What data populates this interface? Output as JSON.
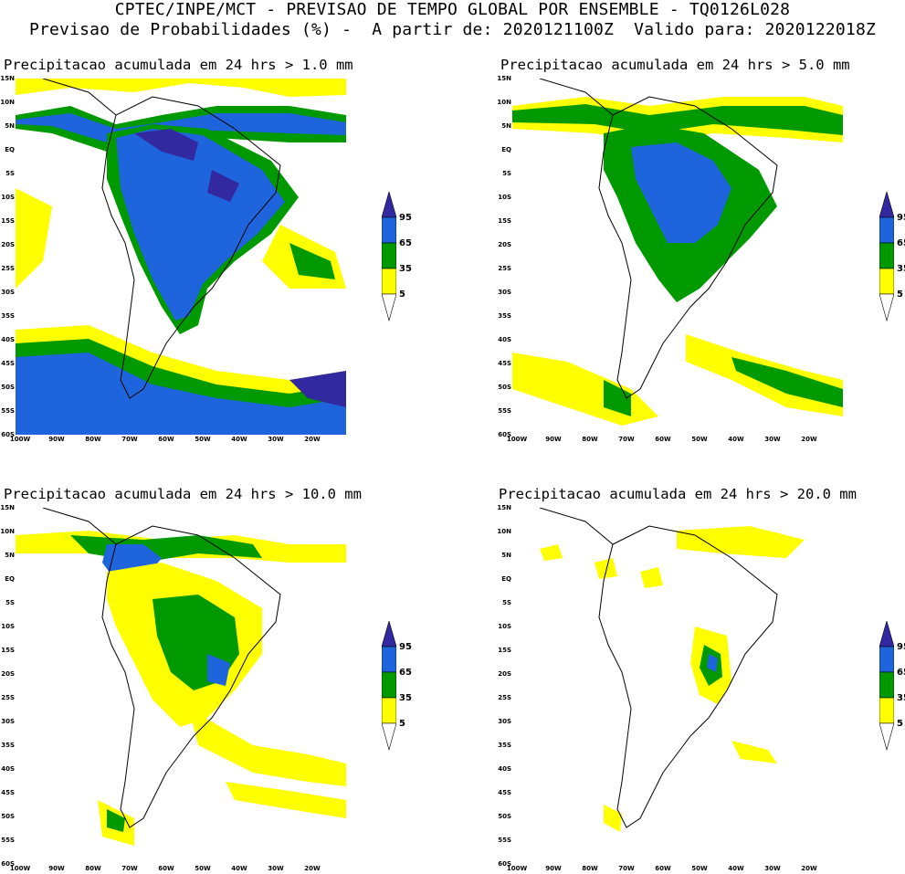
{
  "header": {
    "line1": "CPTEC/INPE/MCT - PREVISAO DE TEMPO GLOBAL POR ENSEMBLE - TQ0126L028",
    "line2": "Previsao de Probabilidades (%) -  A partir de: 2020121100Z  Valido para: 2020122018Z"
  },
  "colors": {
    "yellow": "#ffff00",
    "green": "#009900",
    "blue": "#1e64dc",
    "navy": "#3228a0",
    "land_outline": "#000000"
  },
  "axes": {
    "lat_labels": [
      "15N",
      "10N",
      "5N",
      "EQ",
      "5S",
      "10S",
      "15S",
      "20S",
      "25S",
      "30S",
      "35S",
      "40S",
      "45S",
      "50S",
      "55S",
      "60S"
    ],
    "lon_labels": [
      "100W",
      "90W",
      "80W",
      "70W",
      "60W",
      "50W",
      "40W",
      "30W",
      "20W"
    ]
  },
  "legend": {
    "levels": [
      "95",
      "65",
      "35",
      "5"
    ]
  },
  "panels": [
    {
      "title": "Precipitacao acumulada em 24 hrs > 1.0 mm"
    },
    {
      "title": "Precipitacao acumulada em 24 hrs > 5.0 mm"
    },
    {
      "title": "Precipitacao acumulada em 24 hrs > 10.0 mm"
    },
    {
      "title": "Precipitacao acumulada em 24 hrs > 20.0 mm"
    }
  ]
}
